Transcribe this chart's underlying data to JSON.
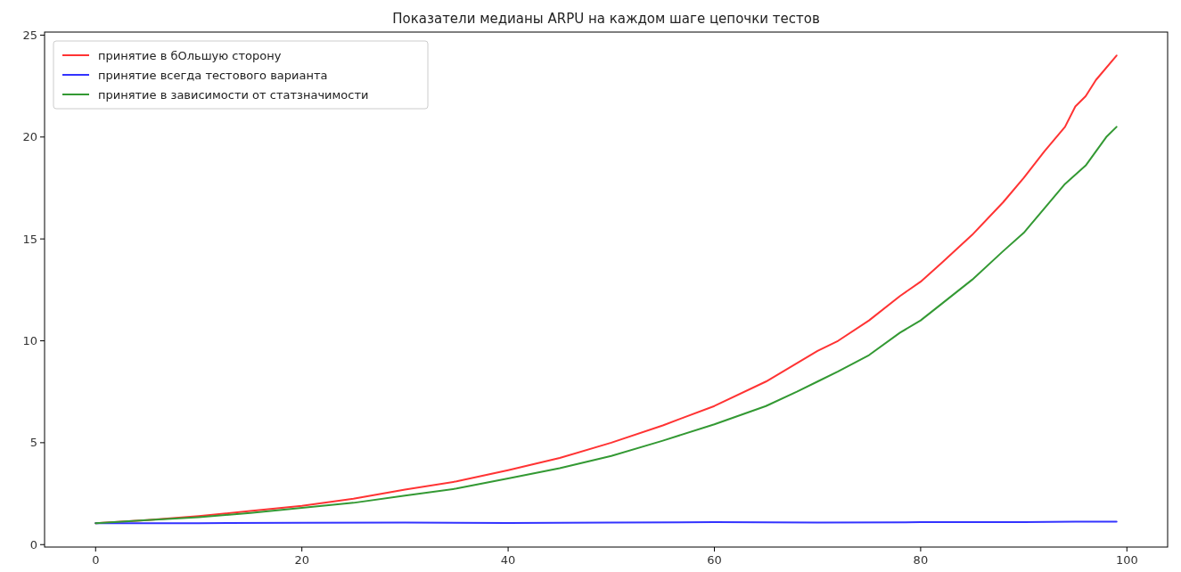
{
  "chart_data": {
    "type": "line",
    "title": "Показатели медианы ARPU на каждом шаге цепочки тестов",
    "xlim": [
      -4.95,
      103.95
    ],
    "xticks": [
      0,
      20,
      40,
      60,
      80,
      100
    ],
    "ylim": [
      -0.12,
      25.15
    ],
    "yticks": [
      0,
      5,
      10,
      15,
      20,
      25
    ],
    "legend": "top left",
    "grid": false,
    "series": [
      {
        "name": "принятие в бОльшую сторону",
        "color": "#ff3333",
        "x": [
          0,
          5,
          10,
          15,
          20,
          25,
          30,
          35,
          40,
          45,
          50,
          55,
          60,
          65,
          70,
          72,
          75,
          78,
          80,
          82,
          85,
          88,
          90,
          92,
          94,
          95,
          96,
          97,
          99
        ],
        "values": [
          1.05,
          1.2,
          1.4,
          1.65,
          1.9,
          2.25,
          2.7,
          3.1,
          3.65,
          4.25,
          5.0,
          5.85,
          6.8,
          8.0,
          9.5,
          10.0,
          11.0,
          12.2,
          12.9,
          13.8,
          15.2,
          16.8,
          18.0,
          19.3,
          20.5,
          21.5,
          22.0,
          22.8,
          24.0
        ]
      },
      {
        "name": "принятие всегда тестового варианта",
        "color": "#3333ff",
        "x": [
          0,
          10,
          20,
          30,
          40,
          50,
          60,
          70,
          80,
          90,
          95,
          99
        ],
        "values": [
          1.05,
          1.05,
          1.07,
          1.08,
          1.06,
          1.08,
          1.1,
          1.08,
          1.1,
          1.1,
          1.13,
          1.13
        ]
      },
      {
        "name": "принятие в зависимости от статзначимости",
        "color": "#339933",
        "x": [
          0,
          5,
          10,
          15,
          20,
          25,
          30,
          35,
          40,
          45,
          50,
          55,
          60,
          65,
          68,
          70,
          72,
          75,
          78,
          80,
          82,
          85,
          88,
          90,
          92,
          94,
          96,
          97,
          98,
          99
        ],
        "values": [
          1.05,
          1.2,
          1.35,
          1.55,
          1.8,
          2.05,
          2.4,
          2.75,
          3.25,
          3.75,
          4.35,
          5.1,
          5.9,
          6.8,
          7.5,
          8.0,
          8.5,
          9.3,
          10.4,
          11.0,
          11.8,
          13.0,
          14.4,
          15.3,
          16.5,
          17.7,
          18.6,
          19.3,
          20.0,
          20.5
        ]
      }
    ]
  }
}
